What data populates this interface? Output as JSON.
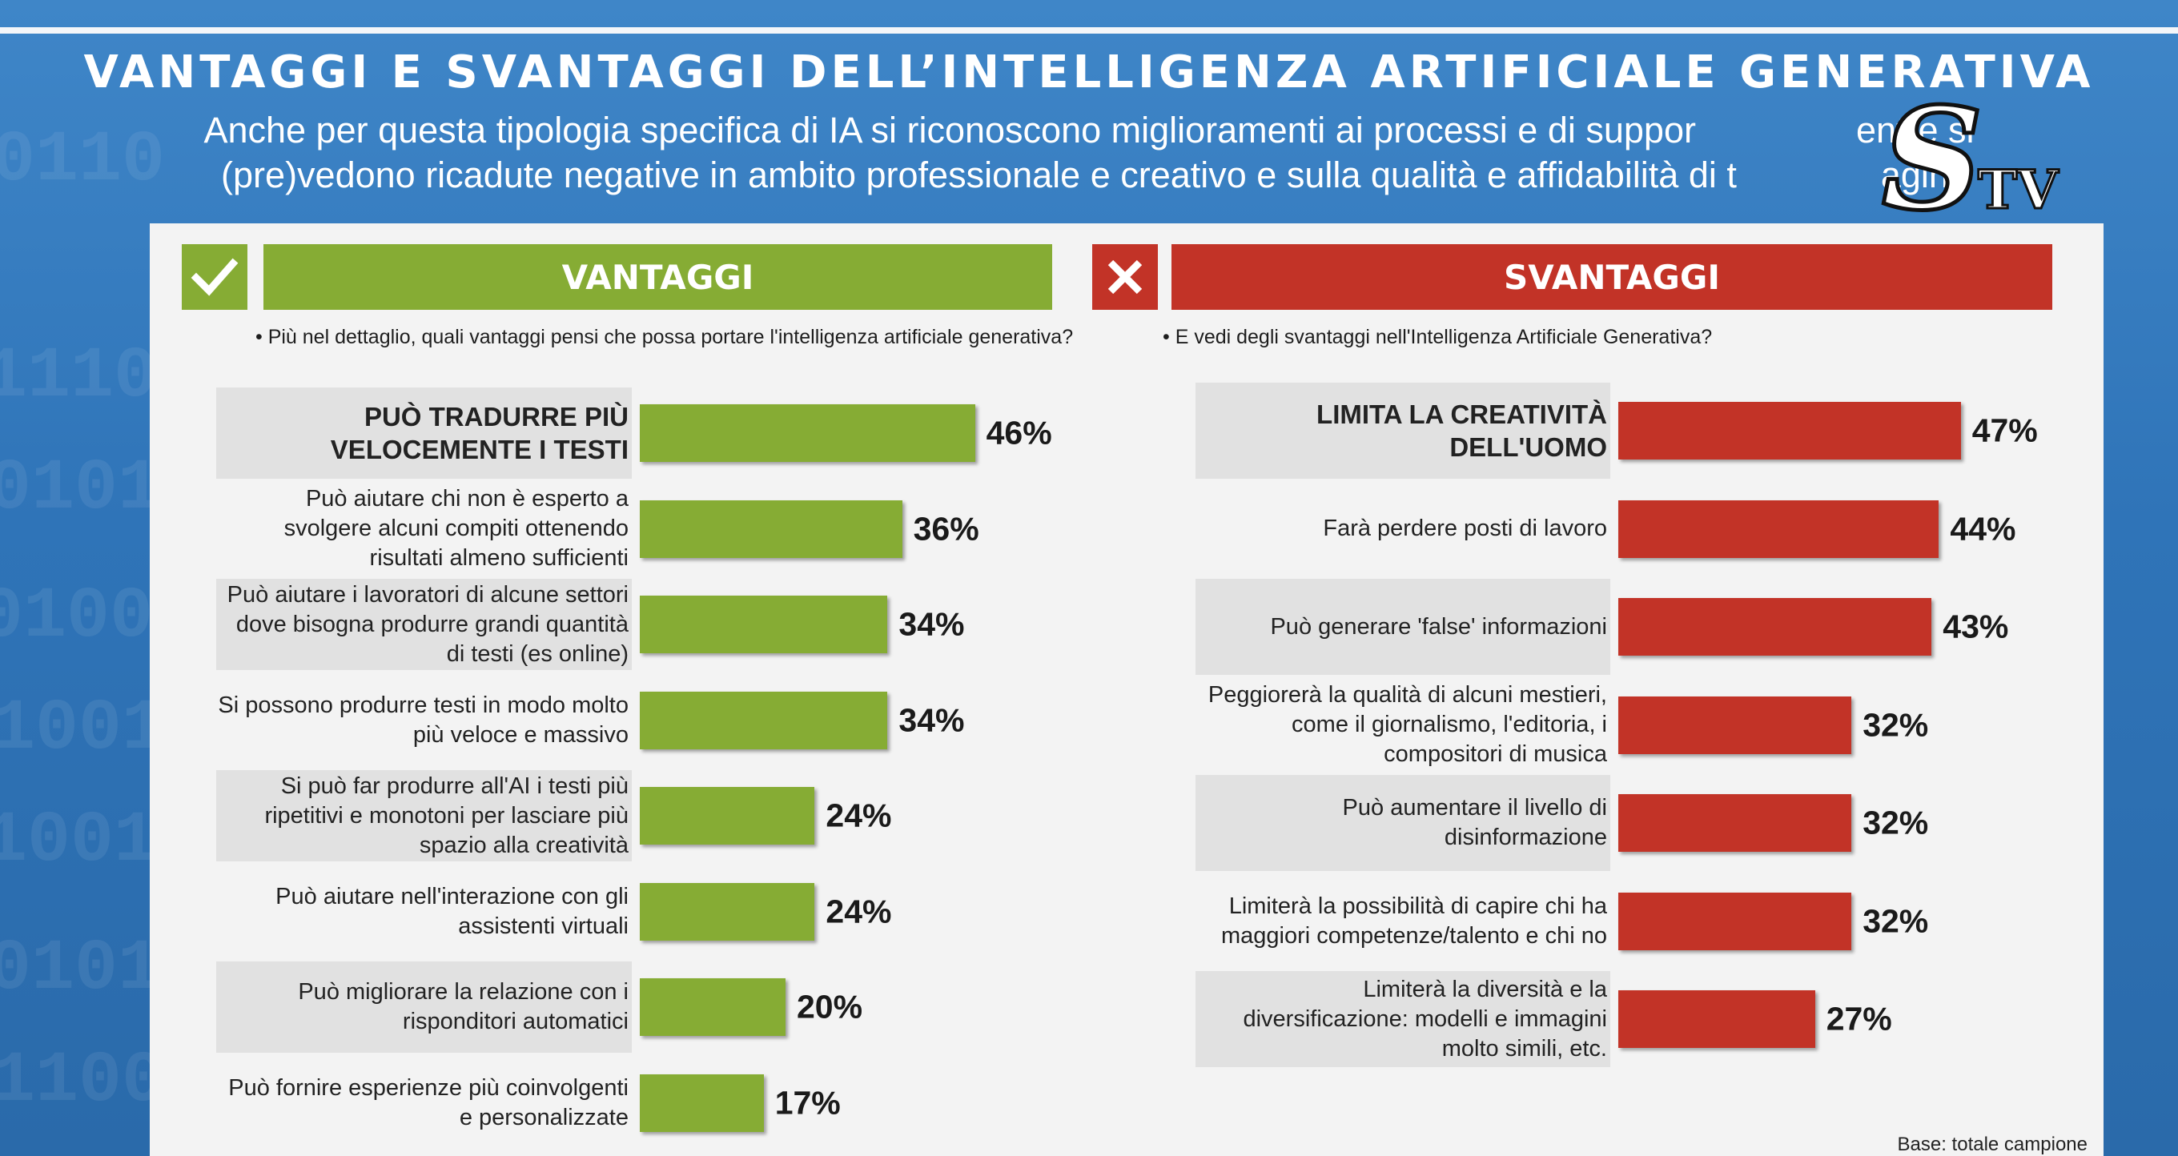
{
  "title": "VANTAGGI E SVANTAGGI DELL’INTELLIGENZA ARTIFICIALE GENERATIVA",
  "subtitle": {
    "line1": "Anche per questa tipologia specifica di IA si riconoscono miglioramenti ai processi e di suppor",
    "line1_end": "entre si",
    "line2": "(pre)vedono ricadute negative in ambito professionale e creativo e sulla qualità e affidabilità di t",
    "line2_end": "agini"
  },
  "logo": {
    "letter": "S",
    "text": "TV"
  },
  "colors": {
    "advantage": "#86ac34",
    "disadvantage": "#c23327",
    "background": "#2f74b8"
  },
  "icons": {
    "advantages": "check-icon",
    "disadvantages": "cross-icon"
  },
  "advantages": {
    "header": "VANTAGGI",
    "question": "• Più nel dettaglio, quali vantaggi pensi che possa portare l'intelligenza artificiale generativa?"
  },
  "disadvantages": {
    "header": "SVANTAGGI",
    "question": "• E vedi degli svantaggi nell'Intelligenza Artificiale Generativa?"
  },
  "base_note": "Base: totale campione",
  "chart_data": [
    {
      "type": "bar",
      "orientation": "horizontal",
      "title": "VANTAGGI",
      "unit": "%",
      "categories": [
        "PUÒ TRADURRE PIÙ VELOCEMENTE I TESTI",
        "Può aiutare chi non è esperto a svolgere alcuni compiti ottenendo risultati almeno sufficienti",
        "Può aiutare i lavoratori di alcune settori dove bisogna produrre grandi quantità di testi (es online)",
        "Si possono produrre testi in modo molto più veloce e massivo",
        "Si può far produrre all'AI i testi più ripetitivi e monotoni per lasciare più spazio alla creatività",
        "Può aiutare nell'interazione con gli assistenti virtuali",
        "Può migliorare la relazione con i risponditori automatici",
        "Può fornire esperienze più coinvolgenti e personalizzate"
      ],
      "values": [
        46,
        36,
        34,
        34,
        24,
        24,
        20,
        17
      ],
      "labels": [
        "46%",
        "36%",
        "34%",
        "34%",
        "24%",
        "24%",
        "20%",
        "17%"
      ],
      "xlim": [
        0,
        50
      ]
    },
    {
      "type": "bar",
      "orientation": "horizontal",
      "title": "SVANTAGGI",
      "unit": "%",
      "categories": [
        "LIMITA LA CREATIVITÀ DELL'UOMO",
        "Farà perdere posti di lavoro",
        "Può generare 'false' informazioni",
        "Peggiorerà la qualità di alcuni mestieri, come il giornalismo, l'editoria, i compositori di musica",
        "Può aumentare il livello di disinformazione",
        "Limiterà la possibilità di capire chi ha maggiori competenze/talento e chi no",
        "Limiterà la diversità e la diversificazione: modelli e immagini molto simili, etc."
      ],
      "values": [
        47,
        44,
        43,
        32,
        32,
        32,
        27
      ],
      "labels": [
        "47%",
        "44%",
        "43%",
        "32%",
        "32%",
        "32%",
        "27%"
      ],
      "xlim": [
        0,
        50
      ]
    }
  ]
}
